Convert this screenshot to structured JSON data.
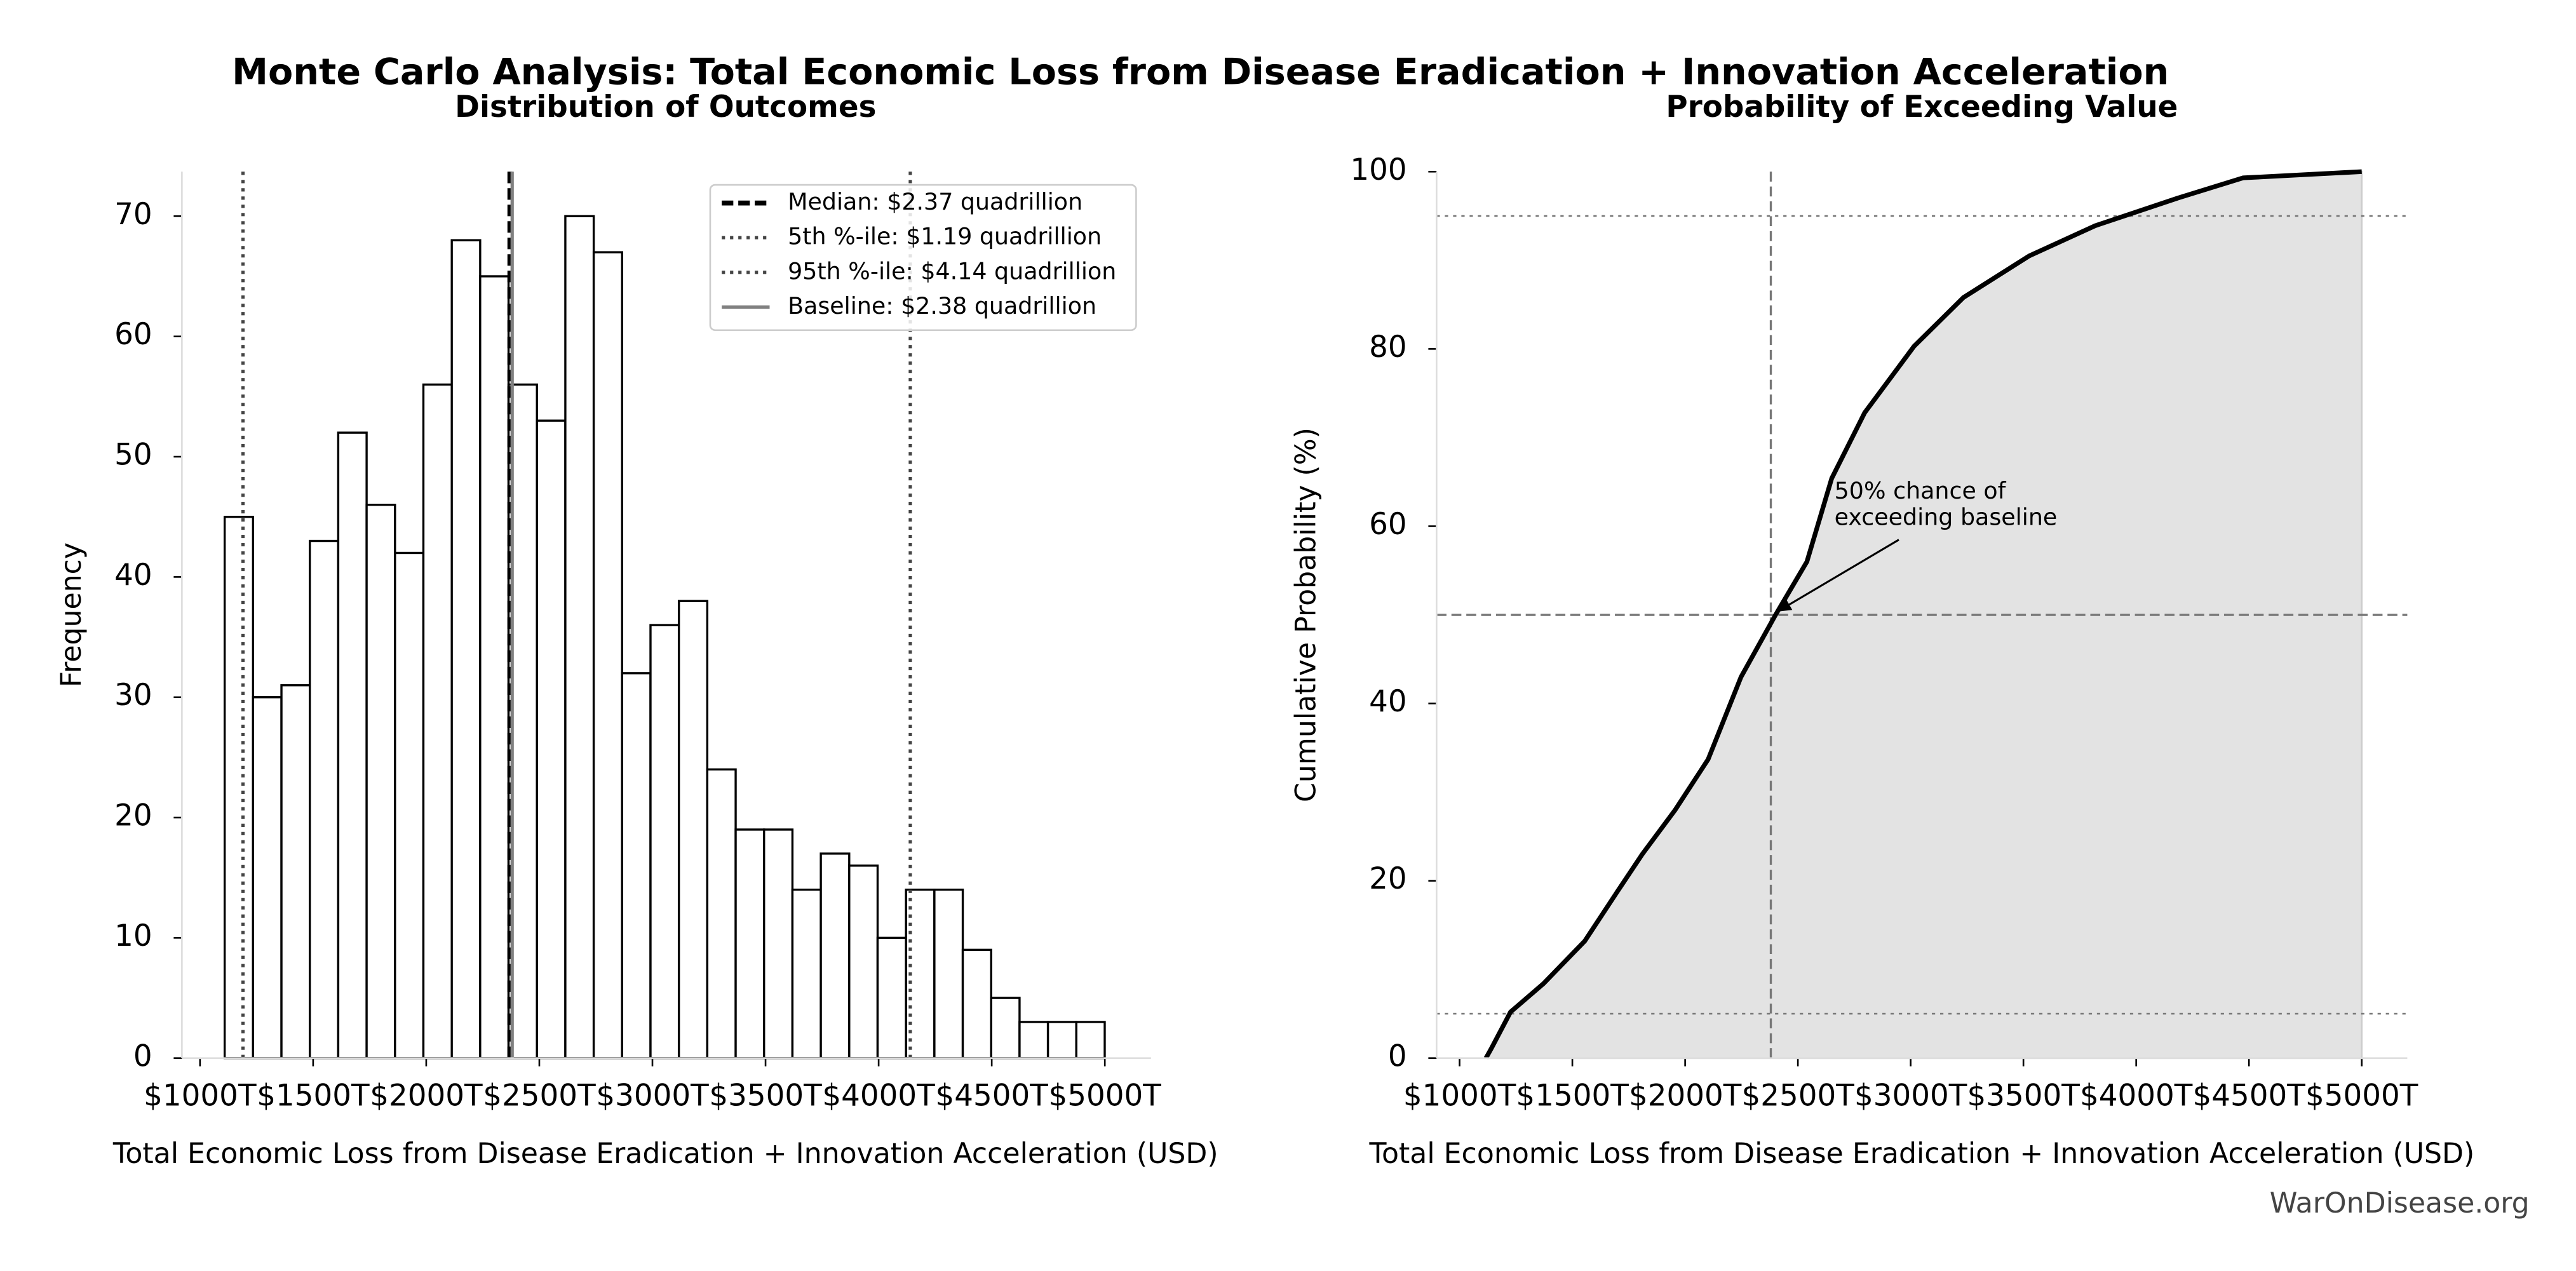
{
  "title": "Monte Carlo Analysis: Total Economic Loss from Disease Eradication + Innovation Acceleration",
  "watermark": "WarOnDisease.org",
  "chart_data": [
    {
      "type": "histogram",
      "title": "Distribution of Outcomes",
      "xlabel": "Total Economic Loss from Disease Eradication + Innovation Acceleration (USD)",
      "ylabel": "Frequency",
      "bins": [
        1109,
        1234.5,
        1360,
        1485.5,
        1611,
        1736.5,
        1862,
        1987.5,
        2113,
        2238.5,
        2364,
        2489.5,
        2615,
        2740.5,
        2866,
        2991.5,
        3117,
        3242.5,
        3368,
        3493.5,
        3619,
        3744.5,
        3870,
        3995.5,
        4121,
        4246.5,
        4372,
        4497.5,
        4623,
        4748.5,
        4874,
        4999.5
      ],
      "counts": [
        45,
        30,
        31,
        43,
        52,
        46,
        42,
        56,
        68,
        65,
        56,
        53,
        70,
        67,
        32,
        36,
        38,
        24,
        19,
        19,
        14,
        17,
        16,
        10,
        14,
        14,
        9,
        5,
        3,
        3,
        3
      ],
      "color": "#ffffff",
      "edgecolor": "#000000",
      "xlim": [
        920,
        5204
      ],
      "ylim": [
        0,
        73.7
      ],
      "xticks": [
        {
          "value": 1000,
          "label": "$1000T"
        },
        {
          "value": 1500,
          "label": "$1500T"
        },
        {
          "value": 2000,
          "label": "$2000T"
        },
        {
          "value": 2500,
          "label": "$2500T"
        },
        {
          "value": 3000,
          "label": "$3000T"
        },
        {
          "value": 3500,
          "label": "$3500T"
        },
        {
          "value": 4000,
          "label": "$4000T"
        },
        {
          "value": 4500,
          "label": "$4500T"
        },
        {
          "value": 5000,
          "label": "$5000T"
        }
      ],
      "yticks": [
        0,
        10,
        20,
        30,
        40,
        50,
        60,
        70
      ],
      "vlines": [
        {
          "name": "Median: $2.37 quadrillion",
          "value": 2370,
          "style": "dashed",
          "color": "#000000"
        },
        {
          "name": "5th %-ile: $1.19 quadrillion",
          "value": 1190,
          "style": "dotted",
          "color": "#444444"
        },
        {
          "name": "95th %-ile: $4.14 quadrillion",
          "value": 4140,
          "style": "dotted",
          "color": "#444444"
        },
        {
          "name": "Baseline: $2.38 quadrillion",
          "value": 2380,
          "style": "solid",
          "color": "#808080"
        }
      ],
      "legend": "upper right"
    },
    {
      "type": "line",
      "title": "Probability of Exceeding Value",
      "xlabel": "Total Economic Loss from Disease Eradication + Innovation Acceleration (USD)",
      "ylabel": "Cumulative Probability (%)",
      "x": [
        1117,
        1139,
        1226,
        1372,
        1555,
        1700,
        1810,
        1956,
        2102,
        2248,
        2401,
        2540,
        2650,
        2796,
        3015,
        3234,
        3526,
        3818,
        4182,
        4474,
        5000
      ],
      "y": [
        0,
        1,
        5.2,
        8.4,
        13.2,
        18.8,
        23,
        28,
        33.7,
        43,
        50,
        56,
        65.4,
        72.8,
        80.3,
        85.8,
        90.5,
        93.9,
        97,
        99.3,
        100
      ],
      "color": "#000000",
      "fill": "#e3e3e3",
      "xlim": [
        898,
        5202
      ],
      "ylim": [
        0,
        100
      ],
      "xticks": [
        {
          "value": 1000,
          "label": "$1000T"
        },
        {
          "value": 1500,
          "label": "$1500T"
        },
        {
          "value": 2000,
          "label": "$2000T"
        },
        {
          "value": 2500,
          "label": "$2500T"
        },
        {
          "value": 3000,
          "label": "$3000T"
        },
        {
          "value": 3500,
          "label": "$3500T"
        },
        {
          "value": 4000,
          "label": "$4000T"
        },
        {
          "value": 4500,
          "label": "$4500T"
        },
        {
          "value": 5000,
          "label": "$5000T"
        }
      ],
      "yticks": [
        0,
        20,
        40,
        60,
        80,
        100
      ],
      "hlines": [
        5,
        95
      ],
      "crosshair": {
        "x": 2380,
        "y": 50
      },
      "annotation": {
        "lines": [
          "50% chance of",
          "exceeding baseline"
        ],
        "x": 2380,
        "y": 50
      }
    }
  ]
}
